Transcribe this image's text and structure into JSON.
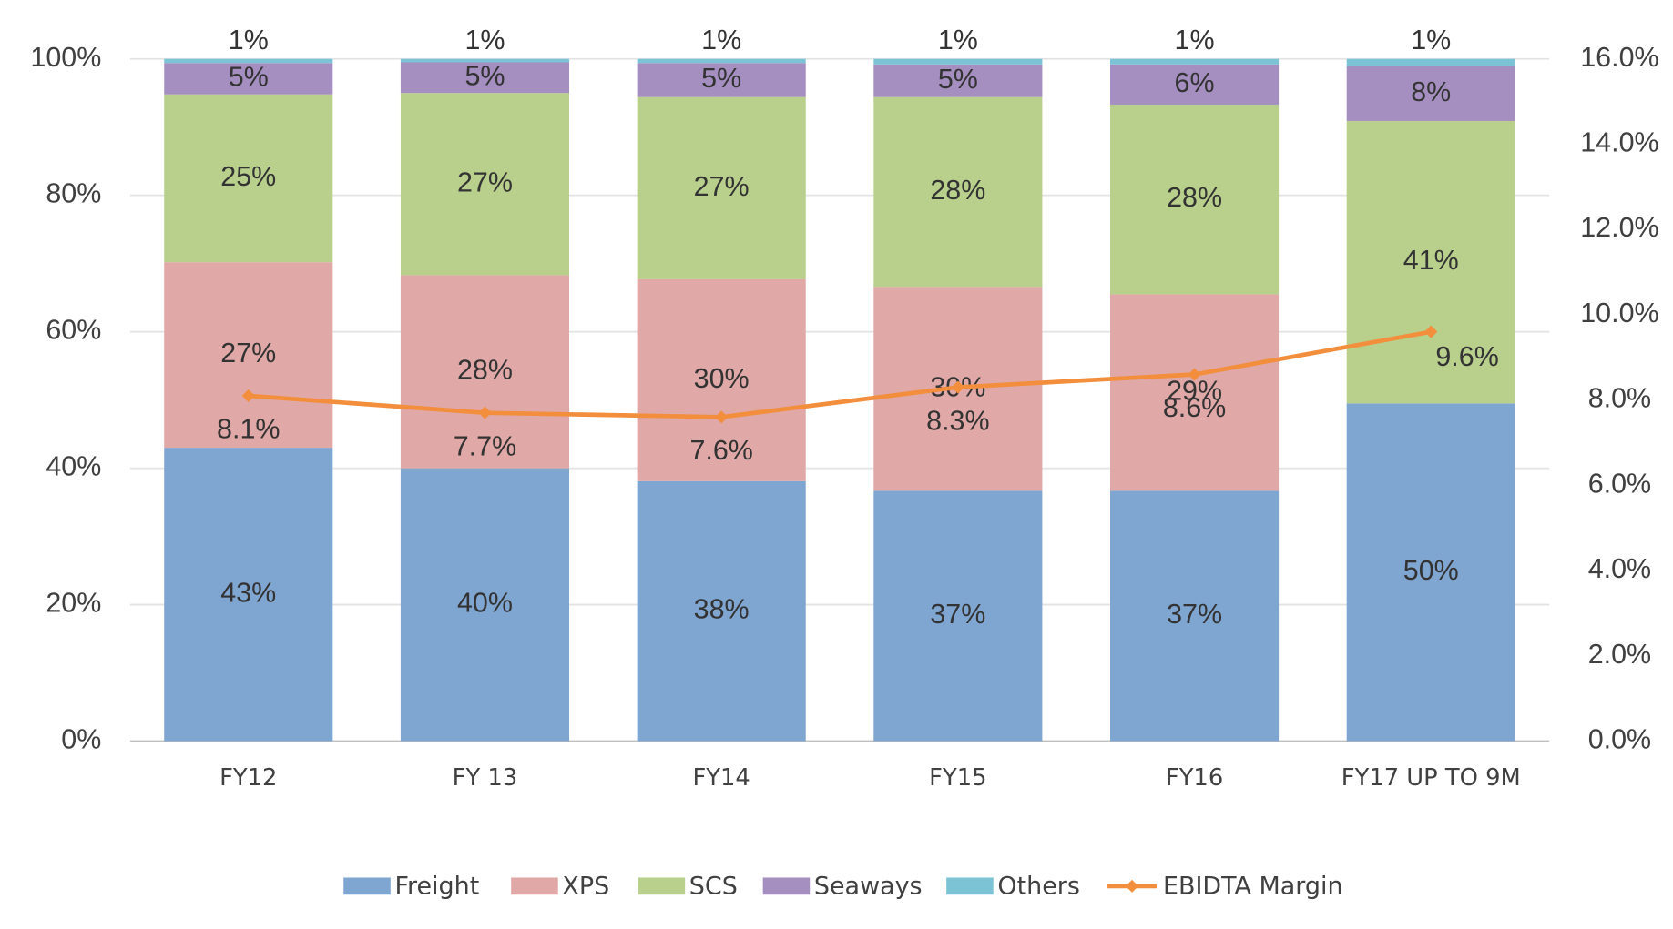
{
  "chart_data": {
    "type": "bar",
    "stacked": true,
    "categories": [
      "FY12",
      "FY 13",
      "FY14",
      "FY15",
      "FY16",
      "FY17 UP TO 9M"
    ],
    "series": [
      {
        "name": "Freight",
        "color": "#7fa5d1",
        "values": [
          43,
          40,
          38.1,
          36.7,
          36.7,
          49.5
        ],
        "value_labels": [
          "43%",
          "40%",
          "38%",
          "37%",
          "37%",
          "50%"
        ]
      },
      {
        "name": "XPS",
        "color": "#e0a8a6",
        "values": [
          27.2,
          28.3,
          29.6,
          29.9,
          28.8,
          0
        ],
        "value_labels": [
          "27%",
          "28%",
          "30%",
          "30%",
          "29%",
          null
        ]
      },
      {
        "name": "SCS",
        "color": "#b9d08c",
        "values": [
          24.6,
          26.7,
          26.7,
          27.8,
          27.8,
          41.4
        ],
        "value_labels": [
          "25%",
          "27%",
          "27%",
          "28%",
          "28%",
          "41%"
        ]
      },
      {
        "name": "Seaways",
        "color": "#a58fc1",
        "values": [
          4.6,
          4.5,
          5.0,
          4.8,
          5.9,
          8.0
        ],
        "value_labels": [
          "5%",
          "5%",
          "5%",
          "5%",
          "6%",
          "8%"
        ]
      },
      {
        "name": "Others",
        "color": "#7cc3d6",
        "values": [
          0.6,
          0.5,
          0.6,
          0.8,
          0.8,
          1.1
        ],
        "value_labels": [
          "1%",
          "1%",
          "1%",
          "1%",
          "1%",
          "1%"
        ]
      },
      {
        "name": "EBIDTA Margin",
        "type": "line",
        "axis": "y2",
        "color": "#f28e3c",
        "values": [
          8.1,
          7.7,
          7.6,
          8.3,
          8.6,
          9.6
        ],
        "value_labels": [
          "8.1%",
          "7.7%",
          "7.6%",
          "8.3%",
          "8.6%",
          "9.6%"
        ]
      }
    ],
    "ylim": [
      0,
      100
    ],
    "yticks": [
      {
        "value": 0,
        "label": "0%"
      },
      {
        "value": 20,
        "label": "20%"
      },
      {
        "value": 40,
        "label": "40%"
      },
      {
        "value": 60,
        "label": "60%"
      },
      {
        "value": 80,
        "label": "80%"
      },
      {
        "value": 100,
        "label": "100%"
      }
    ],
    "y2lim": [
      0,
      16
    ],
    "y2ticks": [
      {
        "value": 0,
        "label": "0.0%"
      },
      {
        "value": 2,
        "label": "2.0%"
      },
      {
        "value": 4,
        "label": "4.0%"
      },
      {
        "value": 6,
        "label": "6.0%"
      },
      {
        "value": 8,
        "label": "8.0%"
      },
      {
        "value": 10,
        "label": "10.0%"
      },
      {
        "value": 12,
        "label": "12.0%"
      },
      {
        "value": 14,
        "label": "14.0%"
      },
      {
        "value": 16,
        "label": "16.0%"
      }
    ],
    "grid": true,
    "legend": "bottom"
  }
}
